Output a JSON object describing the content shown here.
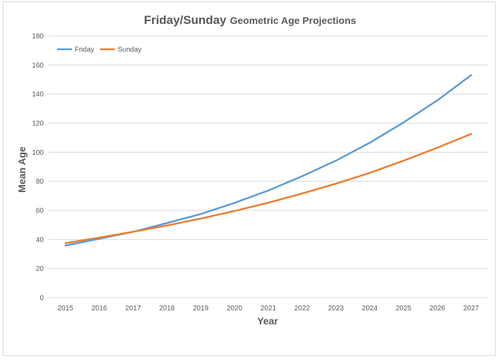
{
  "chart_data": {
    "type": "line",
    "title": "Friday/Sunday",
    "subtitle": "Geometric Age Projections",
    "xlabel": "Year",
    "ylabel": "Mean Age",
    "categories": [
      "2015",
      "2016",
      "2017",
      "2018",
      "2019",
      "2020",
      "2021",
      "2022",
      "2023",
      "2024",
      "2025",
      "2026",
      "2027"
    ],
    "ylim": [
      0,
      180
    ],
    "yticks": [
      0,
      20,
      40,
      60,
      80,
      100,
      120,
      140,
      160,
      180
    ],
    "grid": true,
    "legend_position": "top-left",
    "series": [
      {
        "name": "Friday",
        "color": "#5b9bd5",
        "values": [
          35.8,
          40.5,
          45.3,
          51.3,
          57.5,
          65.2,
          73.7,
          83.5,
          94.2,
          106.5,
          120.5,
          135.7,
          153.0
        ]
      },
      {
        "name": "Sunday",
        "color": "#ed7d31",
        "values": [
          37.5,
          41.3,
          45.3,
          49.6,
          54.4,
          59.6,
          65.3,
          71.6,
          78.4,
          85.8,
          94.2,
          103.1,
          112.6
        ]
      }
    ]
  }
}
